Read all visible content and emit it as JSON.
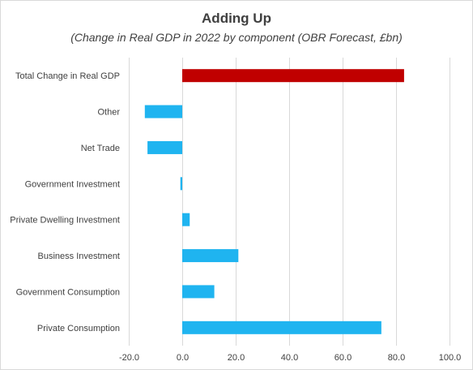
{
  "chart_data": {
    "type": "bar",
    "orientation": "horizontal",
    "title": "Adding Up",
    "subtitle": "(Change in Real GDP in 2022 by component (OBR Forecast, £bn)",
    "categories": [
      "Total Change in Real GDP",
      "Other",
      "Net Trade",
      "Government Investment",
      "Private Dwelling Investment",
      "Business Investment",
      "Government Consumption",
      "Private Consumption"
    ],
    "values": [
      83.0,
      -14.0,
      -13.0,
      -0.7,
      2.8,
      21.0,
      12.0,
      74.5
    ],
    "bar_colors": [
      "#c00000",
      "#1fb4f0",
      "#1fb4f0",
      "#1fb4f0",
      "#1fb4f0",
      "#1fb4f0",
      "#1fb4f0",
      "#1fb4f0"
    ],
    "xlim": [
      -20,
      100
    ],
    "xticks": [
      -20,
      0,
      20,
      40,
      60,
      80,
      100
    ],
    "xtick_labels": [
      "-20.0",
      "0.0",
      "20.0",
      "40.0",
      "60.0",
      "80.0",
      "100.0"
    ],
    "xlabel": "",
    "ylabel": "",
    "grid": "vertical",
    "legend": "none"
  }
}
